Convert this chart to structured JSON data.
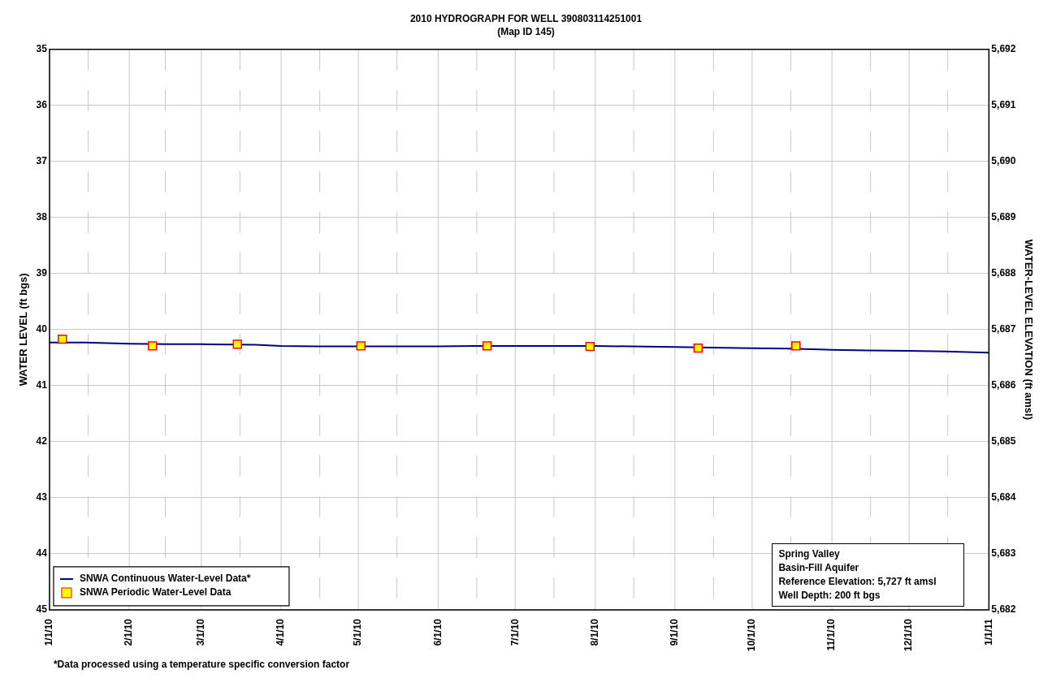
{
  "chart_data": {
    "type": "line",
    "title": "2010 HYDROGRAPH FOR WELL 390803114251001",
    "subtitle": "(Map ID 145)",
    "ylabel": "WATER LEVEL (ft bgs)",
    "y2label": "WATER-LEVEL ELEVATION (ft amsl)",
    "series": [
      {
        "name": "SNWA Continuous Water-Level Data*",
        "color": "#000080",
        "marker": "none",
        "line_style": "solid",
        "x": [
          "2010-01-01",
          "2010-01-15",
          "2010-02-01",
          "2010-02-15",
          "2010-03-01",
          "2010-03-22",
          "2010-04-01",
          "2010-04-15",
          "2010-05-01",
          "2010-05-15",
          "2010-06-01",
          "2010-06-15",
          "2010-07-01",
          "2010-07-15",
          "2010-08-01",
          "2010-08-15",
          "2010-09-01",
          "2010-09-15",
          "2010-10-01",
          "2010-10-15",
          "2010-11-01",
          "2010-11-15",
          "2010-12-01",
          "2010-12-15",
          "2011-01-01"
        ],
        "values": [
          40.23,
          40.23,
          40.25,
          40.26,
          40.26,
          40.27,
          40.29,
          40.3,
          40.3,
          40.3,
          40.3,
          40.29,
          40.29,
          40.29,
          40.29,
          40.3,
          40.31,
          40.32,
          40.33,
          40.34,
          40.36,
          40.37,
          40.38,
          40.39,
          40.41
        ]
      },
      {
        "name": "SNWA Periodic Water-Level Data",
        "type": "scatter",
        "color": "#ffff00",
        "marker": "square",
        "x": [
          "2010-01-06",
          "2010-02-10",
          "2010-03-15",
          "2010-05-02",
          "2010-06-20",
          "2010-07-30",
          "2010-09-10",
          "2010-10-18"
        ],
        "values": [
          40.17,
          40.29,
          40.26,
          40.29,
          40.29,
          40.3,
          40.33,
          40.29
        ]
      }
    ],
    "xlim": [
      "2010-01-01",
      "2011-01-01"
    ],
    "xticks": [
      {
        "value": "2010-01-01",
        "label": "1/1/10"
      },
      {
        "value": "2010-01-16",
        "label": null
      },
      {
        "value": "2010-02-01",
        "label": "2/1/10"
      },
      {
        "value": "2010-02-15",
        "label": null
      },
      {
        "value": "2010-03-01",
        "label": "3/1/10"
      },
      {
        "value": "2010-03-16",
        "label": null
      },
      {
        "value": "2010-04-01",
        "label": "4/1/10"
      },
      {
        "value": "2010-04-16",
        "label": null
      },
      {
        "value": "2010-05-01",
        "label": "5/1/10"
      },
      {
        "value": "2010-05-16",
        "label": null
      },
      {
        "value": "2010-06-01",
        "label": "6/1/10"
      },
      {
        "value": "2010-06-16",
        "label": null
      },
      {
        "value": "2010-07-01",
        "label": "7/1/10"
      },
      {
        "value": "2010-07-16",
        "label": null
      },
      {
        "value": "2010-08-01",
        "label": "8/1/10"
      },
      {
        "value": "2010-08-16",
        "label": null
      },
      {
        "value": "2010-09-01",
        "label": "9/1/10"
      },
      {
        "value": "2010-09-16",
        "label": null
      },
      {
        "value": "2010-10-01",
        "label": "10/1/10"
      },
      {
        "value": "2010-10-16",
        "label": null
      },
      {
        "value": "2010-11-01",
        "label": "11/1/10"
      },
      {
        "value": "2010-11-16",
        "label": null
      },
      {
        "value": "2010-12-01",
        "label": "12/1/10"
      },
      {
        "value": "2010-12-16",
        "label": null
      },
      {
        "value": "2011-01-01",
        "label": "1/1/11"
      }
    ],
    "ylim": [
      45,
      35
    ],
    "yticks": [
      35,
      36,
      37,
      38,
      39,
      40,
      41,
      42,
      43,
      44,
      45
    ],
    "y2lim": [
      5682,
      5692
    ],
    "y2ticks": [
      {
        "value": 5682,
        "label": "5,682"
      },
      {
        "value": 5683,
        "label": "5,683"
      },
      {
        "value": 5684,
        "label": "5,684"
      },
      {
        "value": 5685,
        "label": "5,685"
      },
      {
        "value": 5686,
        "label": "5,686"
      },
      {
        "value": 5687,
        "label": "5,687"
      },
      {
        "value": 5688,
        "label": "5,688"
      },
      {
        "value": 5689,
        "label": "5,689"
      },
      {
        "value": 5690,
        "label": "5,690"
      },
      {
        "value": 5691,
        "label": "5,691"
      },
      {
        "value": 5692,
        "label": "5,692"
      }
    ],
    "grid": true,
    "legend": "bottom left",
    "annotations": [
      "Spring Valley",
      "Basin-Fill Aquifer",
      "Reference Elevation: 5,727 ft amsl",
      "Well Depth: 200 ft bgs",
      "*Data processed using a temperature specific conversion factor"
    ]
  }
}
